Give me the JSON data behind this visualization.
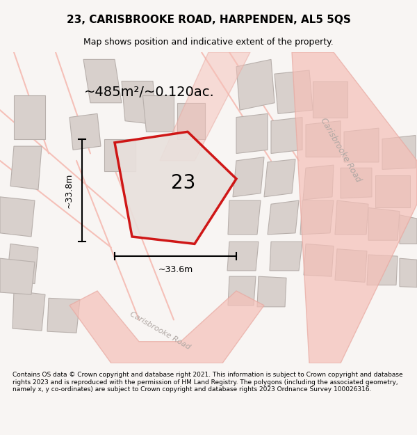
{
  "title_line1": "23, CARISBROOKE ROAD, HARPENDEN, AL5 5QS",
  "title_line2": "Map shows position and indicative extent of the property.",
  "area_label": "~485m²/~0.120ac.",
  "plot_number": "23",
  "dim_height": "~33.8m",
  "dim_width": "~33.6m",
  "footer_text": "Contains OS data © Crown copyright and database right 2021. This information is subject to Crown copyright and database rights 2023 and is reproduced with the permission of HM Land Registry. The polygons (including the associated geometry, namely x, y co-ordinates) are subject to Crown copyright and database rights 2023 Ordnance Survey 100026316.",
  "bg_color": "#f5f0ee",
  "map_bg": "#f8f5f3",
  "road_color_light": "#f5c0b8",
  "road_color_dark": "#e8a8a0",
  "building_color": "#d8d0cc",
  "building_edge": "#b8b0ac",
  "plot_fill": "#e8e0dc",
  "plot_edge": "#cc0000",
  "road_label_color": "#b0a8a4",
  "carisbrooke_road_label": "Carisbrooke Road",
  "carisbrooke_road_label2": "Carisbrooke Road"
}
